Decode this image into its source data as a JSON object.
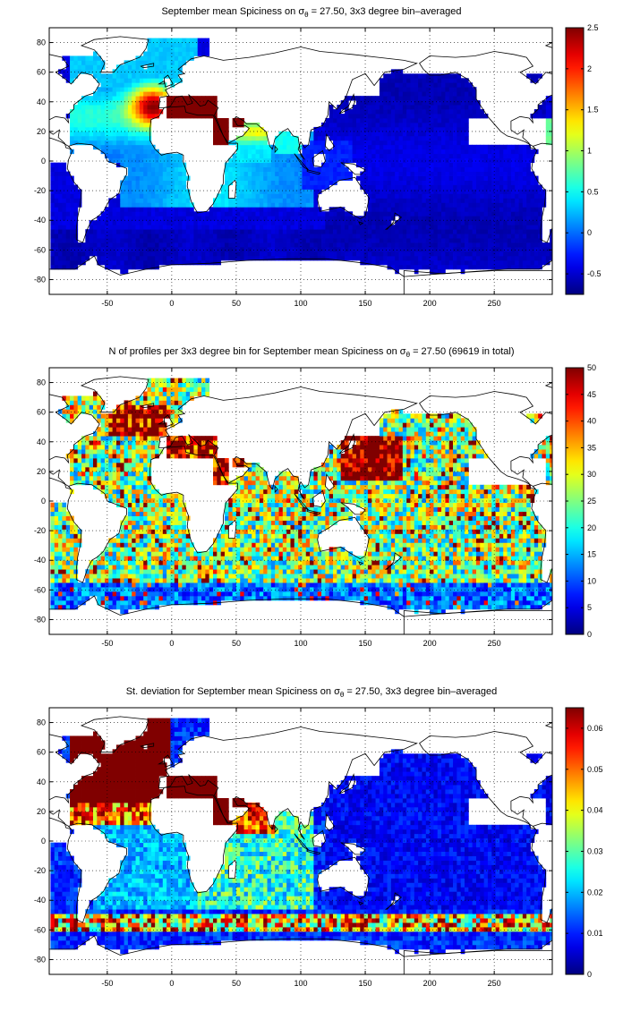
{
  "panels": [
    {
      "title_prefix": "September mean Spiciness on ",
      "title_suffix": " = 27.50, 3x3 degree bin–averaged",
      "colorbar_ticks": [
        "2.5",
        "2",
        "1.5",
        "1",
        "0.5",
        "0",
        "-0.5"
      ],
      "colorbar_range": [
        -0.75,
        2.5
      ]
    },
    {
      "title_prefix": "N of profiles per 3x3 degree bin for September mean Spiciness on ",
      "title_suffix": " = 27.50 (69619 in total)",
      "colorbar_ticks": [
        "50",
        "45",
        "40",
        "35",
        "30",
        "25",
        "20",
        "15",
        "10",
        "5",
        "0"
      ],
      "colorbar_range": [
        0,
        50
      ]
    },
    {
      "title_prefix": "St. deviation for September mean Spiciness on ",
      "title_suffix": " = 27.50, 3x3 degree bin–averaged",
      "colorbar_ticks": [
        "0.06",
        "0.05",
        "0.04",
        "0.03",
        "0.02",
        "0.01",
        "0"
      ],
      "colorbar_range": [
        0,
        0.065
      ]
    }
  ],
  "sigma_symbol": "σ",
  "sigma_subscript": "θ",
  "map_axes": {
    "x_ticks": [
      "-50",
      "0",
      "50",
      "100",
      "150",
      "200",
      "250"
    ],
    "y_ticks": [
      "80",
      "60",
      "40",
      "20",
      "0",
      "-20",
      "-40",
      "-60",
      "-80"
    ],
    "xlim": [
      -95,
      295
    ],
    "ylim": [
      -90,
      90
    ],
    "grid": "dotted"
  },
  "colormap": "jet"
}
